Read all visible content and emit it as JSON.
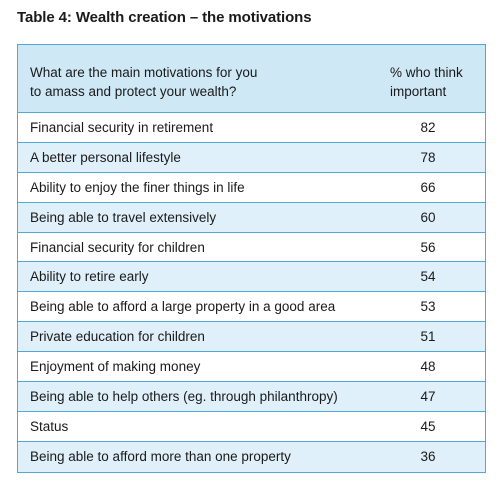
{
  "title": "Table 4: Wealth creation – the motivations",
  "header": {
    "question_line1": "What are the main motivations for you",
    "question_line2": "to amass and protect your wealth?",
    "percent_line1": "% who think",
    "percent_line2": "important"
  },
  "rows": [
    {
      "label": "Financial security in retirement",
      "value": "82"
    },
    {
      "label": "A better personal lifestyle",
      "value": "78"
    },
    {
      "label": "Ability to enjoy the finer things in life",
      "value": "66"
    },
    {
      "label": "Being able to travel extensively",
      "value": "60"
    },
    {
      "label": "Financial security for children",
      "value": "56"
    },
    {
      "label": "Ability to retire early",
      "value": "54"
    },
    {
      "label": "Being able to afford a large property in a good area",
      "value": "53"
    },
    {
      "label": "Private education for children",
      "value": "51"
    },
    {
      "label": "Enjoyment of making money",
      "value": "48"
    },
    {
      "label": "Being able to help others (eg. through philanthropy)",
      "value": "47"
    },
    {
      "label": "Status",
      "value": "45"
    },
    {
      "label": "Being able to afford more than one property",
      "value": "36"
    }
  ],
  "colors": {
    "border": "#4fa9d4",
    "header_bg": "#cfe8f6",
    "stripe_bg": "#dff0fa"
  }
}
